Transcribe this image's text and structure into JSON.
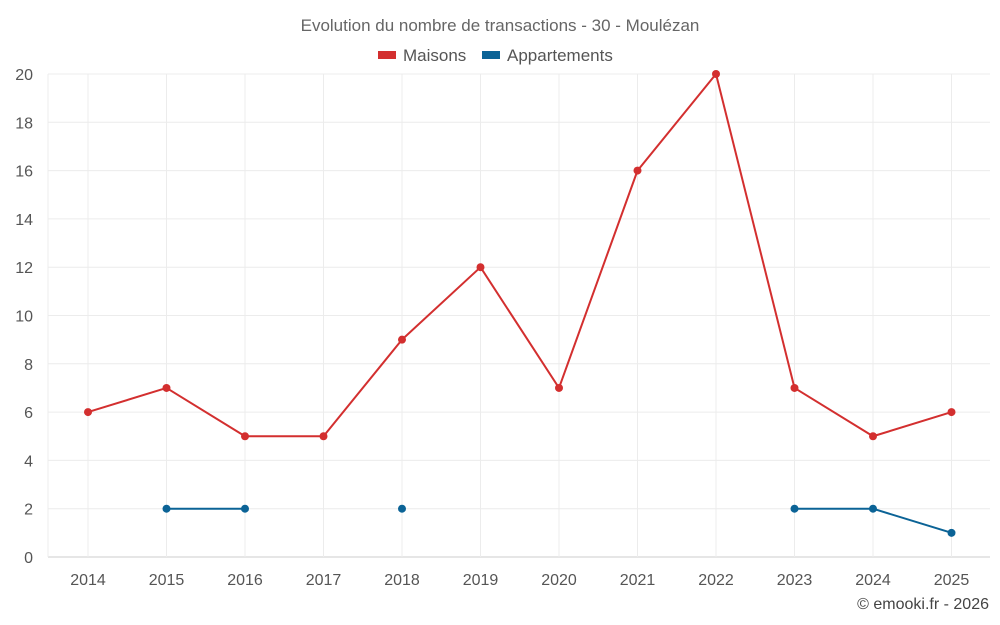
{
  "chart_data": {
    "type": "line",
    "title": "Evolution du nombre de transactions - 30 - Moulézan",
    "categories": [
      "2014",
      "2015",
      "2016",
      "2017",
      "2018",
      "2019",
      "2020",
      "2021",
      "2022",
      "2023",
      "2024",
      "2025"
    ],
    "series": [
      {
        "name": "Maisons",
        "color": "#d32f2f",
        "values": [
          6,
          7,
          5,
          5,
          9,
          12,
          7,
          16,
          20,
          7,
          5,
          6
        ]
      },
      {
        "name": "Appartements",
        "color": "#0b6396",
        "values": [
          null,
          2,
          2,
          null,
          2,
          null,
          null,
          null,
          null,
          2,
          2,
          1
        ]
      }
    ],
    "ylim": [
      0,
      20
    ],
    "yticks": [
      0,
      2,
      4,
      6,
      8,
      10,
      12,
      14,
      16,
      18,
      20
    ],
    "xlabel": "",
    "ylabel": "",
    "grid": true,
    "legend": "top-center"
  },
  "credit": "© emooki.fr - 2026"
}
